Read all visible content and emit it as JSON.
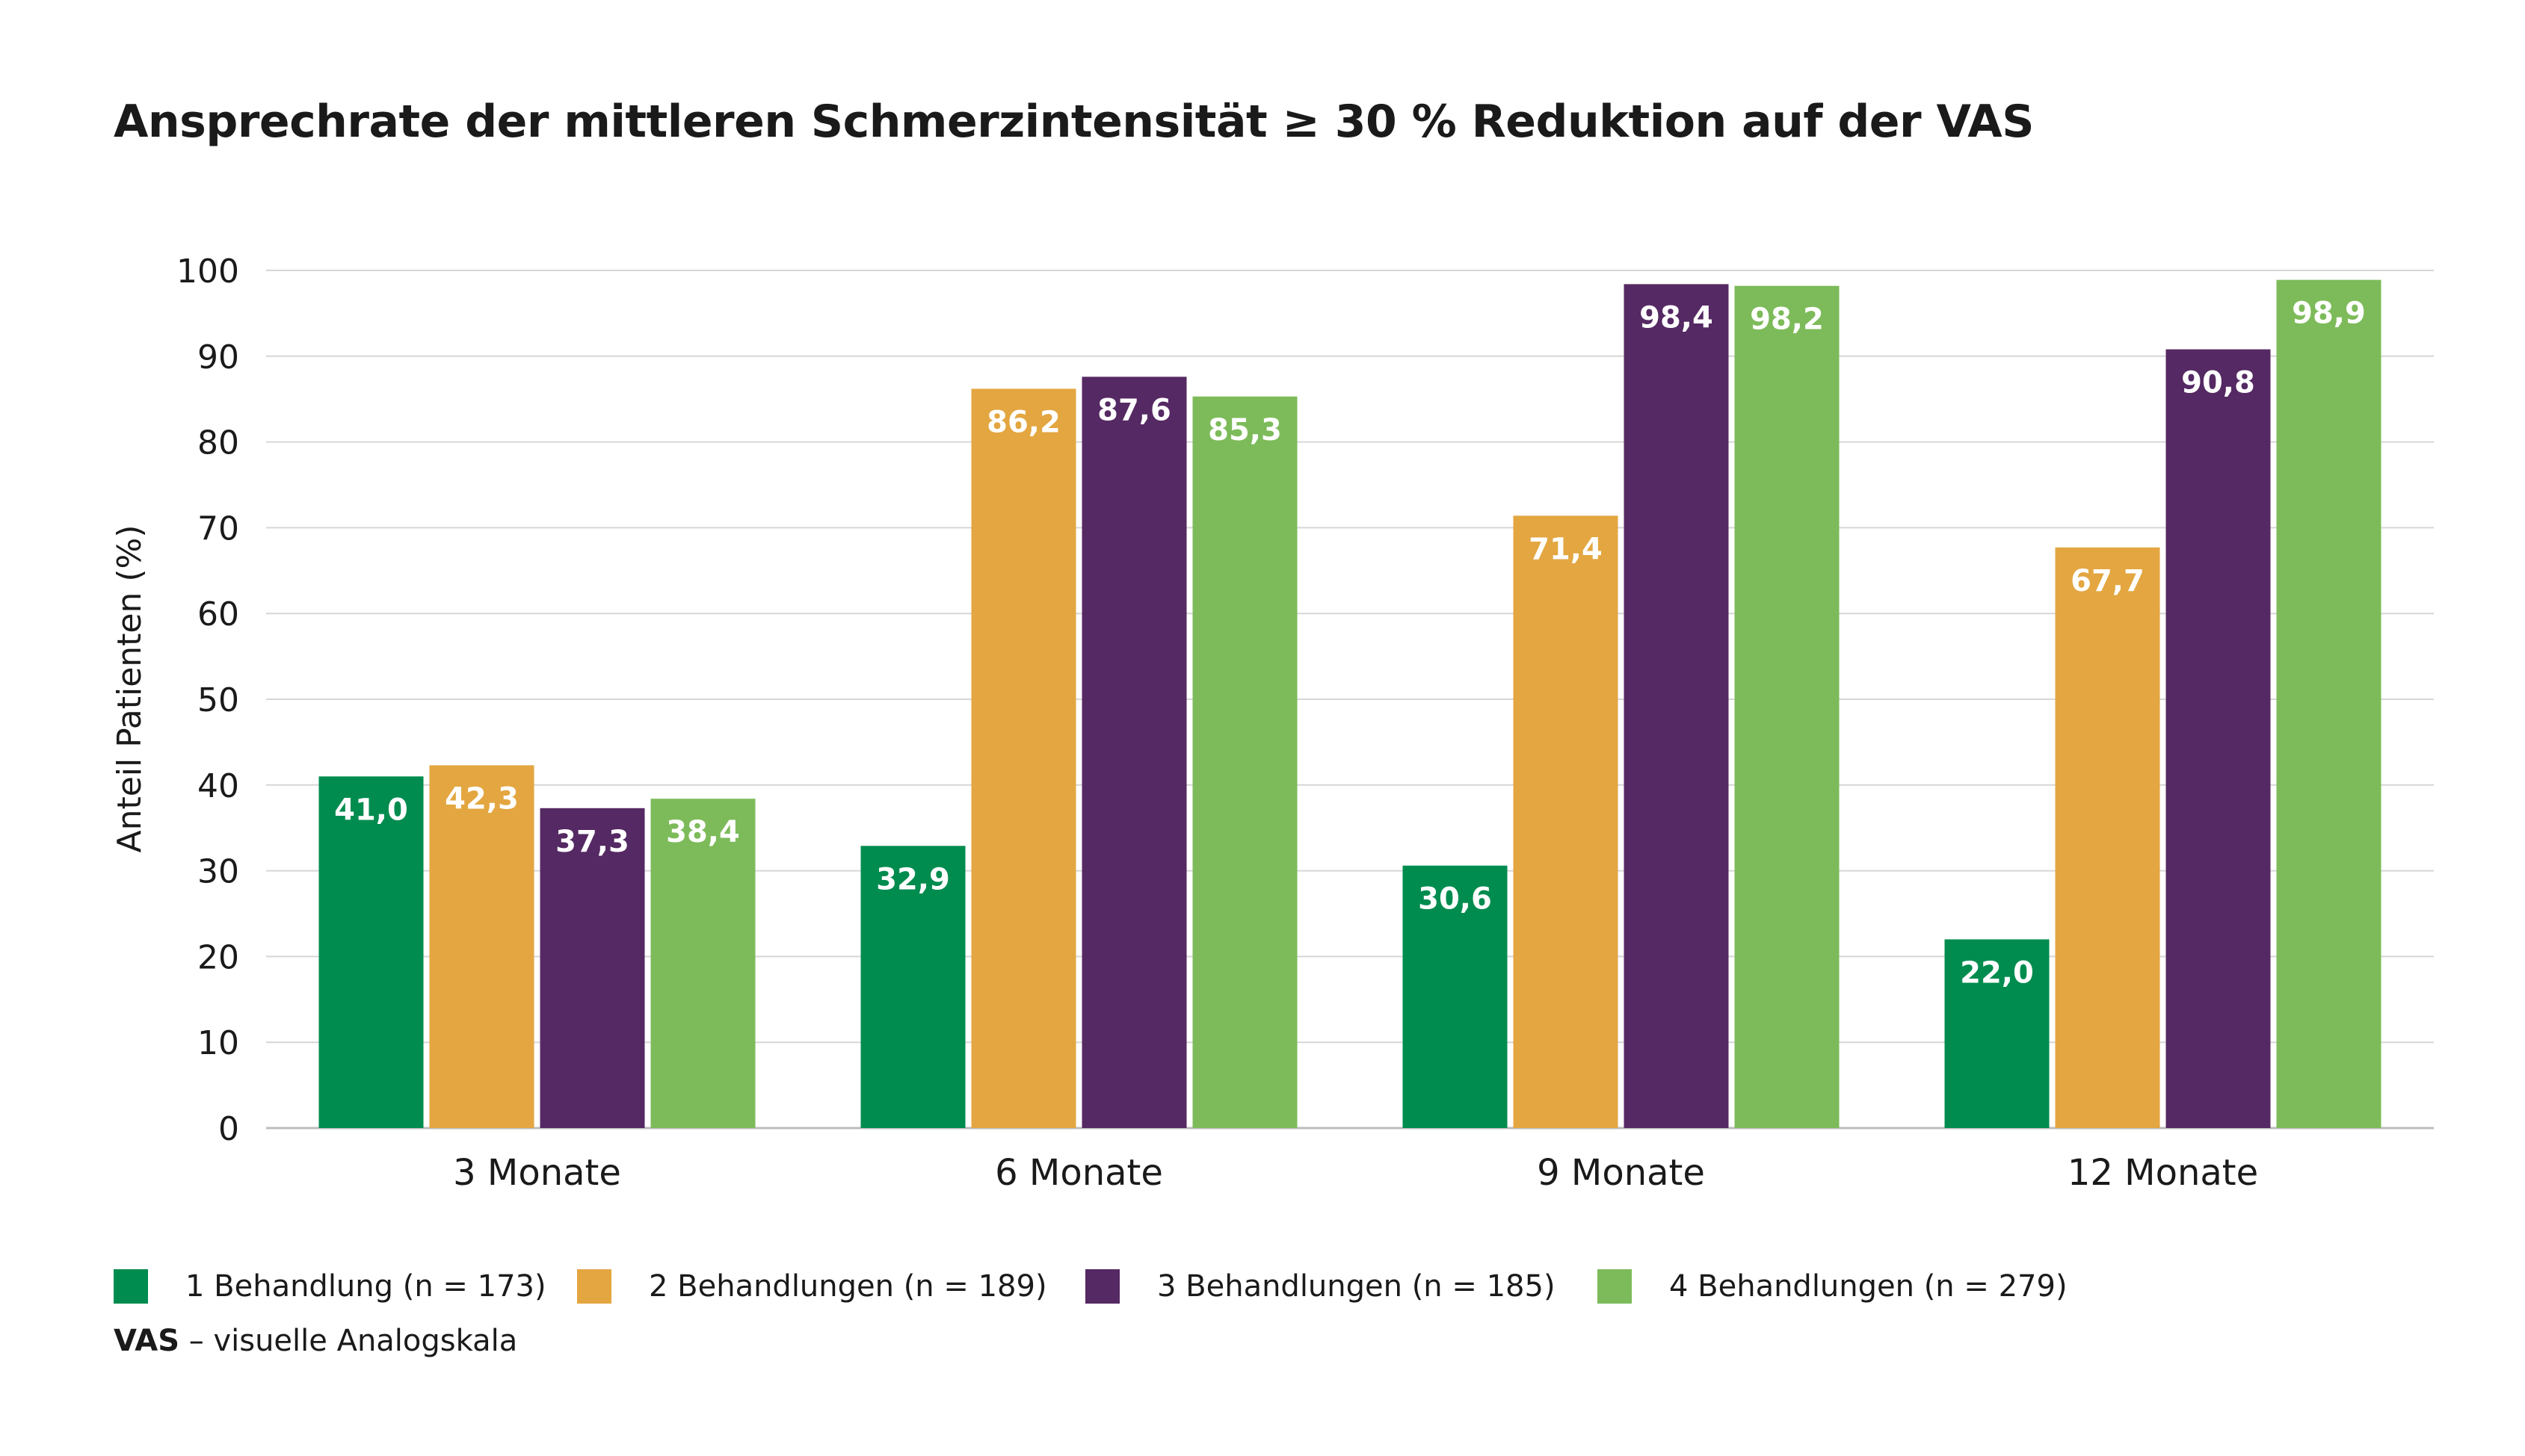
{
  "title": "Ansprechrate der mittleren Schmerzintensität ≥ 30 % Reduktion auf der VAS",
  "footnote": {
    "abbr": "VAS",
    "text": " – visuelle Analogskala"
  },
  "chart_data": {
    "type": "bar",
    "title": "Ansprechrate der mittleren Schmerzintensität ≥ 30 % Reduktion auf der VAS",
    "xlabel": "",
    "ylabel": "Anteil Patienten (%)",
    "ylim": [
      0,
      100
    ],
    "yticks": [
      0,
      10,
      20,
      30,
      40,
      50,
      60,
      70,
      80,
      90,
      100
    ],
    "ytick_labels": [
      "0",
      "10",
      "20",
      "30",
      "40",
      "50",
      "60",
      "70",
      "80",
      "90",
      "100"
    ],
    "grid": "horizontal",
    "legend_position": "bottom",
    "categories": [
      "3 Monate",
      "6 Monate",
      "9 Monate",
      "12 Monate"
    ],
    "series": [
      {
        "name": "1 Behandlung (n = 173)",
        "color": "#008c4f",
        "values": [
          41.0,
          32.9,
          30.6,
          22.0
        ],
        "labels": [
          "41,0",
          "32,9",
          "30,6",
          "22,0"
        ]
      },
      {
        "name": "2 Behandlungen (n = 189)",
        "color": "#e3a640",
        "values": [
          42.3,
          86.2,
          71.4,
          67.7
        ],
        "labels": [
          "42,3",
          "86,2",
          "71,4",
          "67,7"
        ]
      },
      {
        "name": "3 Behandlungen (n = 185)",
        "color": "#552963",
        "values": [
          37.3,
          87.6,
          98.4,
          90.8
        ],
        "labels": [
          "37,3",
          "87,6",
          "98,4",
          "90,8"
        ]
      },
      {
        "name": "4 Behandlungen (n = 279)",
        "color": "#7dbb5a",
        "values": [
          38.4,
          85.3,
          98.2,
          98.9
        ],
        "labels": [
          "38,4",
          "85,3",
          "98,2",
          "98,9"
        ]
      }
    ]
  }
}
